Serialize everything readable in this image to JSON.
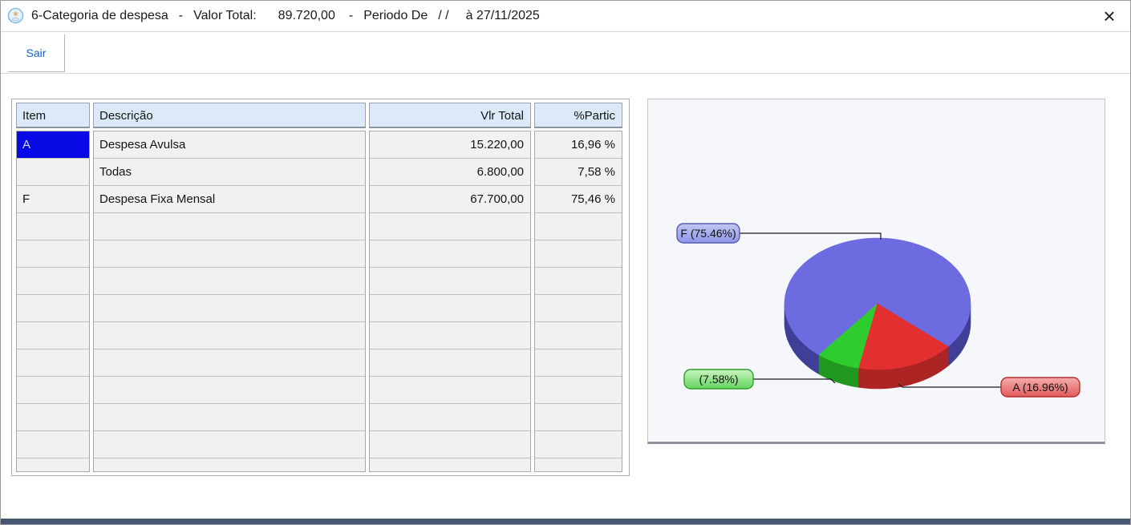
{
  "title_bar": {
    "segments": [
      "6-Categoria de despesa",
      "-",
      "Valor Total:",
      "89.720,00",
      "-",
      "Periodo De",
      "/ /",
      "à 27/11/2025"
    ],
    "close_glyph": "×"
  },
  "toolbar": {
    "sair_label": "Sair"
  },
  "table": {
    "headers": {
      "item": "Item",
      "descricao": "Descrição",
      "vlr_total": "Vlr Total",
      "partic": "%Partic"
    },
    "rows": [
      {
        "item": "A",
        "descricao": "Despesa Avulsa",
        "vlr_total": "15.220,00",
        "partic": "16,96 %",
        "item_selected": true
      },
      {
        "item": "",
        "descricao": "Todas",
        "vlr_total": "6.800,00",
        "partic": "7,58 %",
        "item_selected": false
      },
      {
        "item": "F",
        "descricao": "Despesa Fixa Mensal",
        "vlr_total": "67.700,00",
        "partic": "75,46 %",
        "item_selected": false
      }
    ],
    "empty_rows": 10
  },
  "chart_data": {
    "type": "pie",
    "style": "3d",
    "total_label": "89.720,00",
    "start_angle_deg": -40.6,
    "legend_position": "callout-labels",
    "slices": [
      {
        "label": "F",
        "display": "F (75.46%)",
        "value": "67.700,00",
        "pct": 75.46,
        "color": "#6c6ce0",
        "side_color": "#3f3f98",
        "label_light": "#c2c8f2",
        "label_dark": "#8d94e8",
        "label_border": "#5a5ab0"
      },
      {
        "label": "",
        "display": "(7.58%)",
        "value": "6.800,00",
        "pct": 7.58,
        "color": "#2ecc2e",
        "side_color": "#219921",
        "label_light": "#c9f5c2",
        "label_dark": "#63d45c",
        "label_border": "#2f9e2f"
      },
      {
        "label": "A",
        "display": "A (16.96%)",
        "value": "15.220,00",
        "pct": 16.96,
        "color": "#e23030",
        "side_color": "#ad2424",
        "label_light": "#f5adad",
        "label_dark": "#e25b5b",
        "label_border": "#b03030"
      }
    ]
  },
  "colors": {
    "selection_bg": "#0909e6",
    "selection_text": "#d7d9ee",
    "header_bg": "#dbe9f8",
    "sair_text": "#1661d6",
    "bottom_bar": "#475672",
    "panel_bg": "#f6f7fb"
  }
}
